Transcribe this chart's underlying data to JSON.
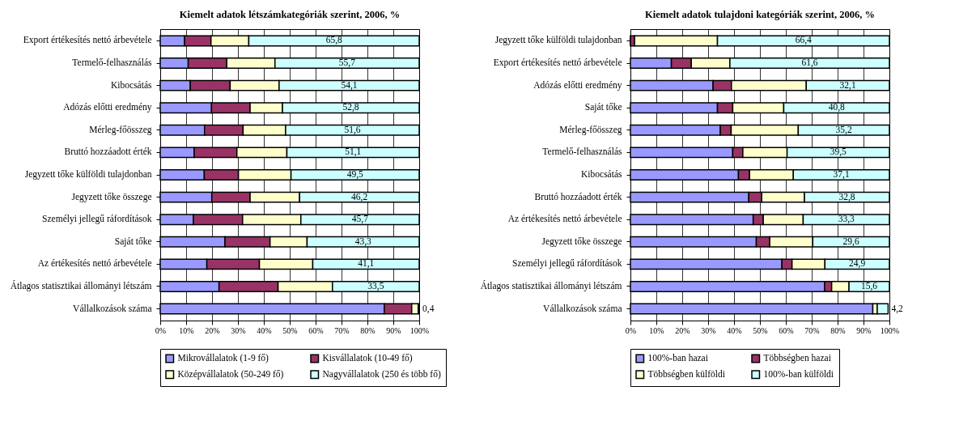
{
  "chart_data": [
    {
      "type": "bar",
      "orientation": "horizontal",
      "stacked": true,
      "title": "Kiemelt adatok létszámkategóriák szerint, 2006, %",
      "categories": [
        "Export értékesítés nettó árbevétele",
        "Termelő-felhasználás",
        "Kibocsátás",
        "Adózás előtti eredmény",
        "Mérleg-főösszeg",
        "Bruttó hozzáadott érték",
        "Jegyzett tőke külföldi tulajdonban",
        "Jegyzett tőke összege",
        "Személyi jellegű ráfordítások",
        "Saját tőke",
        "Az értékesítés nettó árbevétele",
        "Átlagos statisztikai állományi létszám",
        "Vállalkozások száma"
      ],
      "series": [
        {
          "name": "Mikrovállalatok (1-9 fő)",
          "color": "#9999ff",
          "values": [
            9.4,
            10.8,
            11.6,
            19.8,
            17.1,
            13.1,
            17.0,
            19.9,
            12.8,
            25.0,
            18.0,
            22.7,
            86.5
          ]
        },
        {
          "name": "Kisvállalatok (10-49 fő)",
          "color": "#993366",
          "values": [
            10.2,
            14.9,
            15.4,
            14.9,
            14.9,
            16.5,
            13.2,
            14.8,
            19.0,
            17.4,
            20.3,
            22.8,
            10.6
          ]
        },
        {
          "name": "Középvállalatok (50-249 fő)",
          "color": "#ffffcc",
          "values": [
            14.6,
            18.6,
            18.9,
            12.5,
            16.4,
            19.3,
            20.3,
            19.1,
            22.5,
            14.3,
            20.6,
            21.0,
            2.5
          ]
        },
        {
          "name": "Nagyvállalatok (250 és több fő)",
          "color": "#ccffff",
          "values": [
            65.8,
            55.7,
            54.1,
            52.8,
            51.6,
            51.1,
            49.5,
            46.2,
            45.7,
            43.3,
            41.1,
            33.5,
            0.4
          ],
          "value_labels": [
            "65,8",
            "55,7",
            "54,1",
            "52,8",
            "51,6",
            "51,1",
            "49,5",
            "46,2",
            "45,7",
            "43,3",
            "41,1",
            "33,5",
            "0,4"
          ]
        }
      ],
      "xlim": [
        0,
        100
      ],
      "xticks": [
        {
          "value": 0,
          "label": "0%"
        },
        {
          "value": 10,
          "label": "10%"
        },
        {
          "value": 20,
          "label": "20%"
        },
        {
          "value": 30,
          "label": "30%"
        },
        {
          "value": 40,
          "label": "40%"
        },
        {
          "value": 50,
          "label": "50%"
        },
        {
          "value": 60,
          "label": "60%"
        },
        {
          "value": 70,
          "label": "70%"
        },
        {
          "value": 80,
          "label": "80%"
        },
        {
          "value": 90,
          "label": "90%"
        },
        {
          "value": 100,
          "label": "100%"
        }
      ],
      "grid": "x",
      "legend": "bottom"
    },
    {
      "type": "bar",
      "orientation": "horizontal",
      "stacked": true,
      "title": "Kiemelt adatok tulajdoni kategóriák szerint, 2006, %",
      "categories": [
        "Jegyzett tőke külföldi tulajdonban",
        "Export értékesítés nettó árbevétele",
        "Adózás előtti eredmény",
        "Saját tőke",
        "Mérleg-főösszeg",
        "Termelő-felhasználás",
        "Kibocsátás",
        "Bruttó hozzáadott érték",
        "Az értékesítés nettó árbevétele",
        "Jegyzett tőke összege",
        "Személyi jellegű ráfordítások",
        "Átlagos statisztikai állományi létszám",
        "Vállalkozások száma"
      ],
      "series": [
        {
          "name": "100%-ban hazai",
          "color": "#9999ff",
          "values": [
            0,
            15.8,
            31.9,
            33.6,
            34.7,
            39.5,
            41.7,
            45.7,
            47.4,
            48.6,
            58.5,
            75.0,
            93.6
          ]
        },
        {
          "name": "Többségben hazai",
          "color": "#993366",
          "values": [
            1.6,
            7.7,
            7.1,
            5.9,
            4.2,
            3.9,
            4.3,
            5.0,
            3.9,
            5.2,
            3.9,
            2.7,
            null
          ]
        },
        {
          "name": "Többségben külföldi",
          "color": "#ffffcc",
          "values": [
            32.0,
            14.9,
            28.9,
            19.7,
            25.9,
            17.1,
            16.9,
            16.5,
            15.4,
            16.6,
            12.7,
            6.7,
            1.7
          ]
        },
        {
          "name": "100%-ban külföldi",
          "color": "#ccffff",
          "values": [
            66.4,
            61.6,
            32.1,
            40.8,
            35.2,
            39.5,
            37.1,
            32.8,
            33.3,
            29.6,
            24.9,
            15.6,
            4.2
          ],
          "value_labels": [
            "66,4",
            "61,6",
            "32,1",
            "40,8",
            "35,2",
            "39,5",
            "37,1",
            "32,8",
            "33,3",
            "29,6",
            "24,9",
            "15,6",
            "4,2"
          ]
        }
      ],
      "xlim": [
        0,
        100
      ],
      "xticks": [
        {
          "value": 0,
          "label": "0%"
        },
        {
          "value": 10,
          "label": "10%"
        },
        {
          "value": 20,
          "label": "20%"
        },
        {
          "value": 30,
          "label": "30%"
        },
        {
          "value": 40,
          "label": "40%"
        },
        {
          "value": 50,
          "label": "50%"
        },
        {
          "value": 60,
          "label": "60%"
        },
        {
          "value": 70,
          "label": "70%"
        },
        {
          "value": 80,
          "label": "80%"
        },
        {
          "value": 90,
          "label": "90%"
        },
        {
          "value": 100,
          "label": "100%"
        }
      ],
      "grid": "x",
      "legend": "bottom"
    }
  ]
}
